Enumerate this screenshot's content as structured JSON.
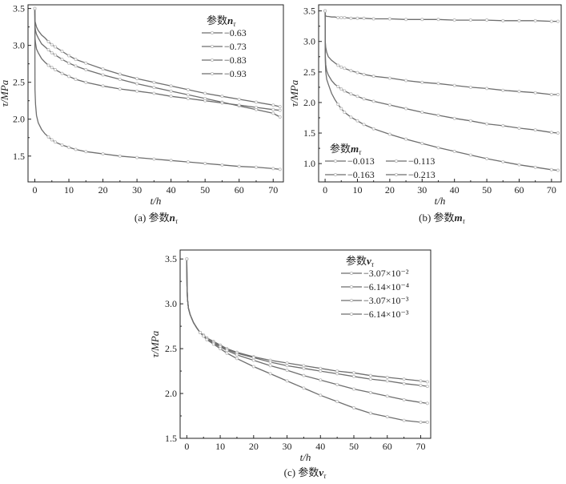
{
  "chart_data": [
    {
      "id": "a",
      "type": "line",
      "caption": "(a)  参数nτ",
      "caption_main": "(a)  参数",
      "caption_sym": "n",
      "caption_sub": "τ",
      "xlabel": "t/h",
      "ylabel": "τ/MPa",
      "xlim": [
        -2,
        73
      ],
      "ylim": [
        1.15,
        3.55
      ],
      "xticks": [
        0,
        10,
        20,
        30,
        40,
        50,
        60,
        70
      ],
      "yticks": [
        1.5,
        2.0,
        2.5,
        3.0,
        3.5
      ],
      "ytick_labels": [
        "1.5",
        "2.0",
        "2.5",
        "3.0",
        "3.5"
      ],
      "legend": {
        "title": "参数nτ:",
        "title_main": "参数",
        "title_sym": "n",
        "title_sub": "τ",
        "position": "top-right",
        "columns": 1
      },
      "x": [
        0,
        0.05,
        0.2,
        0.5,
        1,
        2,
        3,
        4,
        5,
        6,
        8,
        10,
        12,
        15,
        20,
        25,
        30,
        35,
        40,
        45,
        50,
        55,
        60,
        65,
        70,
        72
      ],
      "series": [
        {
          "name": "−0.63",
          "values": [
            3.5,
            3.33,
            3.3,
            3.25,
            3.2,
            3.14,
            3.1,
            3.05,
            3.01,
            2.98,
            2.92,
            2.86,
            2.81,
            2.76,
            2.68,
            2.61,
            2.55,
            2.5,
            2.45,
            2.4,
            2.35,
            2.31,
            2.27,
            2.23,
            2.19,
            2.17
          ]
        },
        {
          "name": "−0.73",
          "values": [
            3.5,
            3.26,
            3.2,
            3.15,
            3.1,
            3.02,
            2.98,
            2.94,
            2.9,
            2.87,
            2.81,
            2.76,
            2.72,
            2.67,
            2.6,
            2.54,
            2.48,
            2.43,
            2.38,
            2.33,
            2.28,
            2.23,
            2.18,
            2.13,
            2.08,
            2.03
          ]
        },
        {
          "name": "−0.83",
          "values": [
            3.5,
            3.1,
            3.03,
            2.95,
            2.9,
            2.82,
            2.77,
            2.73,
            2.7,
            2.67,
            2.62,
            2.58,
            2.54,
            2.5,
            2.45,
            2.41,
            2.38,
            2.35,
            2.31,
            2.28,
            2.25,
            2.22,
            2.19,
            2.16,
            2.13,
            2.12
          ]
        },
        {
          "name": "−0.93",
          "values": [
            3.5,
            2.4,
            2.2,
            2.05,
            1.95,
            1.86,
            1.8,
            1.76,
            1.72,
            1.69,
            1.65,
            1.62,
            1.59,
            1.56,
            1.53,
            1.5,
            1.48,
            1.46,
            1.44,
            1.42,
            1.4,
            1.38,
            1.36,
            1.35,
            1.33,
            1.32
          ]
        }
      ]
    },
    {
      "id": "b",
      "type": "line",
      "caption": "(b)  参数mτ",
      "caption_main": "(b)  参数",
      "caption_sym": "m",
      "caption_sub": "τ",
      "xlabel": "t/h",
      "ylabel": "τ/MPa",
      "xlim": [
        -2,
        73
      ],
      "ylim": [
        0.7,
        3.6
      ],
      "xticks": [
        0,
        10,
        20,
        30,
        40,
        50,
        60,
        70
      ],
      "yticks": [
        1.0,
        1.5,
        2.0,
        2.5,
        3.0,
        3.5
      ],
      "ytick_labels": [
        "1.0",
        "1.5",
        "2.0",
        "2.5",
        "3.0",
        "3.5"
      ],
      "legend": {
        "title": "参数mτ:",
        "title_main": "参数",
        "title_sym": "m",
        "title_sub": "τ",
        "position": "bottom-left",
        "columns": 2
      },
      "x": [
        0,
        0.05,
        0.2,
        0.5,
        1,
        2,
        3,
        4,
        5,
        6,
        8,
        10,
        12,
        15,
        20,
        25,
        30,
        35,
        40,
        45,
        50,
        55,
        60,
        65,
        70,
        72
      ],
      "series": [
        {
          "name": "−0.013",
          "values": [
            3.5,
            3.43,
            3.42,
            3.41,
            3.41,
            3.4,
            3.4,
            3.39,
            3.39,
            3.39,
            3.38,
            3.38,
            3.38,
            3.37,
            3.37,
            3.36,
            3.36,
            3.36,
            3.35,
            3.35,
            3.35,
            3.34,
            3.34,
            3.34,
            3.33,
            3.33
          ]
        },
        {
          "name": "−0.113",
          "values": [
            3.5,
            3.0,
            2.9,
            2.82,
            2.75,
            2.69,
            2.65,
            2.61,
            2.58,
            2.56,
            2.52,
            2.49,
            2.46,
            2.43,
            2.4,
            2.36,
            2.33,
            2.31,
            2.28,
            2.25,
            2.23,
            2.2,
            2.18,
            2.16,
            2.13,
            2.13
          ]
        },
        {
          "name": "−0.163",
          "values": [
            3.5,
            2.8,
            2.62,
            2.52,
            2.45,
            2.36,
            2.3,
            2.26,
            2.22,
            2.19,
            2.14,
            2.1,
            2.06,
            2.02,
            1.96,
            1.9,
            1.84,
            1.79,
            1.74,
            1.7,
            1.65,
            1.62,
            1.58,
            1.55,
            1.51,
            1.5
          ]
        },
        {
          "name": "−0.213",
          "values": [
            3.5,
            2.7,
            2.5,
            2.38,
            2.3,
            2.15,
            2.05,
            1.97,
            1.9,
            1.84,
            1.76,
            1.7,
            1.64,
            1.57,
            1.48,
            1.4,
            1.33,
            1.26,
            1.2,
            1.14,
            1.08,
            1.03,
            0.98,
            0.94,
            0.9,
            0.89
          ]
        }
      ]
    },
    {
      "id": "c",
      "type": "line",
      "caption": "(c)  参数ντ",
      "caption_main": "(c)  参数",
      "caption_sym": "ν",
      "caption_sub": "τ",
      "xlabel": "t/h",
      "ylabel": "τ/MPa",
      "xlim": [
        -2,
        73
      ],
      "ylim": [
        1.5,
        3.6
      ],
      "xticks": [
        0,
        10,
        20,
        30,
        40,
        50,
        60,
        70
      ],
      "yticks": [
        1.5,
        2.0,
        2.5,
        3.0,
        3.5
      ],
      "ytick_labels": [
        "1.5",
        "2.0",
        "2.5",
        "3.0",
        "3.5"
      ],
      "legend": {
        "title": "参数ντ:",
        "title_main": "参数",
        "title_sym": "ν",
        "title_sub": "τ",
        "position": "top-right",
        "columns": 1
      },
      "x": [
        0,
        0.05,
        0.2,
        0.5,
        1,
        2,
        3,
        4,
        5,
        6,
        8,
        10,
        12,
        15,
        20,
        25,
        30,
        35,
        40,
        45,
        50,
        55,
        60,
        65,
        70,
        72
      ],
      "series": [
        {
          "name": "−3.07×10⁻²",
          "values": [
            3.5,
            3.2,
            3.05,
            2.95,
            2.88,
            2.79,
            2.73,
            2.68,
            2.65,
            2.62,
            2.58,
            2.54,
            2.5,
            2.46,
            2.41,
            2.37,
            2.34,
            2.31,
            2.28,
            2.25,
            2.23,
            2.2,
            2.18,
            2.16,
            2.14,
            2.13
          ]
        },
        {
          "name": "−6.14×10⁻⁴",
          "values": [
            3.5,
            3.2,
            3.05,
            2.95,
            2.88,
            2.79,
            2.73,
            2.68,
            2.65,
            2.61,
            2.57,
            2.53,
            2.49,
            2.45,
            2.4,
            2.35,
            2.31,
            2.28,
            2.25,
            2.22,
            2.19,
            2.16,
            2.14,
            2.11,
            2.09,
            2.08
          ]
        },
        {
          "name": "−3.07×10⁻³",
          "values": [
            3.5,
            3.2,
            3.05,
            2.95,
            2.88,
            2.79,
            2.73,
            2.68,
            2.64,
            2.6,
            2.56,
            2.52,
            2.48,
            2.43,
            2.37,
            2.31,
            2.26,
            2.2,
            2.15,
            2.1,
            2.05,
            2.01,
            1.97,
            1.93,
            1.9,
            1.89
          ]
        },
        {
          "name": "−6.14×10⁻³",
          "values": [
            3.5,
            3.2,
            3.05,
            2.95,
            2.88,
            2.79,
            2.73,
            2.68,
            2.64,
            2.6,
            2.55,
            2.5,
            2.45,
            2.39,
            2.3,
            2.22,
            2.14,
            2.06,
            1.98,
            1.91,
            1.84,
            1.78,
            1.74,
            1.7,
            1.68,
            1.68
          ]
        }
      ]
    }
  ],
  "colors": {
    "line": "#6e6e6e",
    "marker": "#b9b9b9",
    "axis": "#222222"
  }
}
